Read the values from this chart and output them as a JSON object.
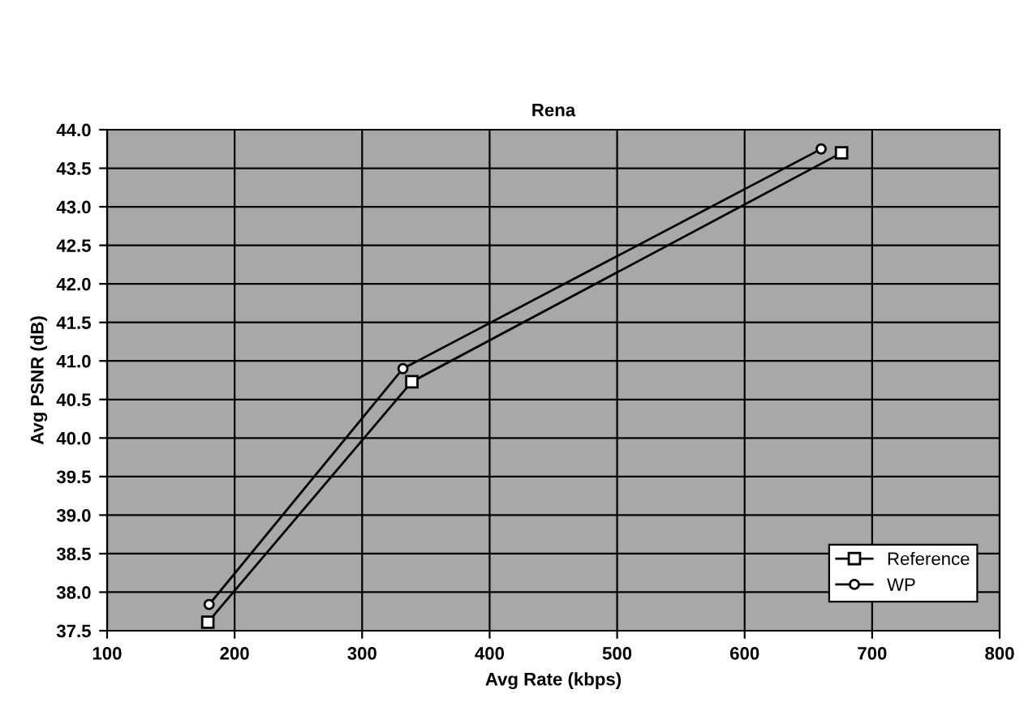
{
  "chart_data": {
    "type": "line",
    "title": "Rena",
    "xlabel": "Avg Rate (kbps)",
    "ylabel": "Avg PSNR (dB)",
    "series": [
      {
        "name": "Reference",
        "color": "#000000",
        "marker": "square",
        "x": [
          179,
          339,
          676
        ],
        "values": [
          37.61,
          40.73,
          43.7
        ]
      },
      {
        "name": "WP",
        "color": "#000000",
        "marker": "circle",
        "x": [
          180,
          332,
          660
        ],
        "values": [
          37.84,
          40.9,
          43.75
        ]
      }
    ],
    "xlim": [
      100,
      800
    ],
    "xticks": [
      100,
      200,
      300,
      400,
      500,
      600,
      700,
      800
    ],
    "ylim": [
      37.5,
      44.0
    ],
    "yticks": [
      37.5,
      {
        "value": 38,
        "label": "38.0"
      },
      38.5,
      {
        "value": 39,
        "label": "39.0"
      },
      39.5,
      {
        "value": 40,
        "label": "40.0"
      },
      40.5,
      {
        "value": 41,
        "label": "41.0"
      },
      41.5,
      {
        "value": 42,
        "label": "42.0"
      },
      42.5,
      {
        "value": 43,
        "label": "43.0"
      },
      43.5,
      {
        "value": 44,
        "label": "44.0"
      }
    ],
    "grid": true,
    "legend": "bottom right",
    "line_style": "solid"
  }
}
